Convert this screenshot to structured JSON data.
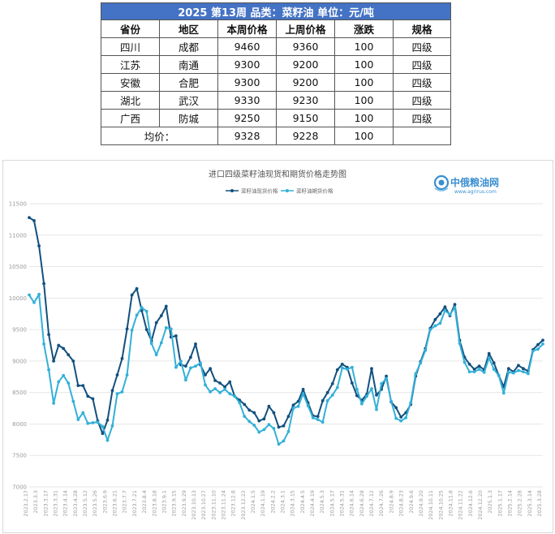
{
  "table": {
    "title": "2025 第13周    品类：菜籽油    单位：元/吨",
    "headers": [
      "省份",
      "地区",
      "本周价格",
      "上周价格",
      "涨跌",
      "规格"
    ],
    "rows": [
      [
        "四川",
        "成都",
        "9460",
        "9360",
        "100",
        "四级"
      ],
      [
        "江苏",
        "南通",
        "9300",
        "9200",
        "100",
        "四级"
      ],
      [
        "安徽",
        "合肥",
        "9300",
        "9200",
        "100",
        "四级"
      ],
      [
        "湖北",
        "武汉",
        "9330",
        "9230",
        "100",
        "四级"
      ],
      [
        "广西",
        "防城",
        "9250",
        "9150",
        "100",
        "四级"
      ]
    ],
    "avg_label": "均价：",
    "avg_this_week": "9328",
    "avg_last_week": "9228",
    "avg_change": "100"
  },
  "logo": {
    "text": "中俄粮油网",
    "url": "www.agrirus.com"
  },
  "chart_data": {
    "type": "line",
    "title": "进口四级菜籽油现货和期货价格走势图",
    "ylim": [
      7000,
      11500
    ],
    "yticks": [
      7000,
      7500,
      8000,
      8500,
      9000,
      9500,
      10000,
      10500,
      11000,
      11500
    ],
    "x_tick_labels": [
      "2023.2.17",
      "2023.3.3",
      "2023.3.17",
      "2023.3.31",
      "2023.4.14",
      "2023.4.28",
      "2023.5.12",
      "2023.5.26",
      "2023.6.9",
      "2023.6.21",
      "2023.7.7",
      "2023.7.21",
      "2023.8.4",
      "2023.8.18",
      "2023.9.1",
      "2023.9.15",
      "2023.9.29",
      "2023.10.13",
      "2023.10.27",
      "2023.11.10",
      "2023.11.24",
      "2023.12.8",
      "2023.12.22",
      "2024.1.5",
      "2024.1.19",
      "2024.2.2",
      "2024.3.1",
      "2024.3.15",
      "2024.4.5",
      "2024.4.19",
      "2024.5.3",
      "2024.5.17",
      "2024.5.31",
      "2024.6.14",
      "2024.6.28",
      "2024.7.12",
      "2024.7.26",
      "2024.8.9",
      "2024.8.23",
      "2024.9.6",
      "2024.9.20",
      "2024.10.11",
      "2024.10.25",
      "2024.11.8",
      "2024.11.22",
      "2024.12.6",
      "2024.12.20",
      "2025.1.3",
      "2025.1.17",
      "2025.2.14",
      "2025.2.28",
      "2025.3.14",
      "2025.3.28"
    ],
    "grid": true,
    "legend_position": "top-center",
    "series": [
      {
        "name": "菜籽油现货价格",
        "color": "#12507e",
        "values": [
          11280,
          11230,
          10830,
          10230,
          9420,
          9000,
          9250,
          9200,
          9100,
          9000,
          8610,
          8610,
          8440,
          8400,
          8050,
          7850,
          8060,
          8530,
          8780,
          9040,
          9510,
          10050,
          10150,
          9800,
          9500,
          9320,
          9610,
          9720,
          9870,
          9380,
          9400,
          8940,
          8920,
          9060,
          9270,
          8940,
          8780,
          8880,
          8690,
          8650,
          8590,
          8670,
          8440,
          8380,
          8310,
          8220,
          8180,
          8050,
          8080,
          8280,
          8180,
          7950,
          7970,
          8120,
          8300,
          8360,
          8550,
          8340,
          8130,
          8120,
          8370,
          8500,
          8640,
          8860,
          8950,
          8900,
          8650,
          8450,
          8380,
          8470,
          8880,
          8460,
          8550,
          8760,
          8350,
          8260,
          8110,
          8180,
          8310,
          8760,
          8990,
          9200,
          9520,
          9660,
          9750,
          9860,
          9720,
          9900,
          9330,
          9060,
          8950,
          8870,
          8920,
          8860,
          9120,
          8970,
          8770,
          8590,
          8880,
          8830,
          8930,
          8880,
          8840,
          9180,
          9260,
          9330
        ]
      },
      {
        "name": "菜籽油期货价格",
        "color": "#33b0d8",
        "values": [
          10050,
          9930,
          10060,
          9270,
          8860,
          8330,
          8670,
          8770,
          8650,
          8360,
          8070,
          8180,
          8010,
          8020,
          8030,
          7960,
          7740,
          7970,
          8480,
          8510,
          8780,
          9490,
          9730,
          9850,
          9790,
          9280,
          9100,
          9290,
          9530,
          9510,
          8900,
          9000,
          8700,
          8890,
          8920,
          8970,
          8620,
          8510,
          8560,
          8500,
          8550,
          8480,
          8440,
          8340,
          8120,
          8040,
          7980,
          7870,
          7910,
          7990,
          7930,
          7680,
          7730,
          7880,
          8250,
          8280,
          8480,
          8290,
          8100,
          8070,
          8030,
          8370,
          8460,
          8580,
          8890,
          8870,
          8900,
          8550,
          8320,
          8440,
          8560,
          8230,
          8640,
          8720,
          8360,
          8090,
          8050,
          8100,
          8340,
          8800,
          8970,
          9170,
          9500,
          9560,
          9600,
          9800,
          9740,
          9850,
          9280,
          8980,
          8830,
          8830,
          8870,
          8820,
          9050,
          8870,
          8770,
          8490,
          8820,
          8810,
          8850,
          8830,
          8800,
          9160,
          9190,
          9270
        ]
      }
    ]
  }
}
